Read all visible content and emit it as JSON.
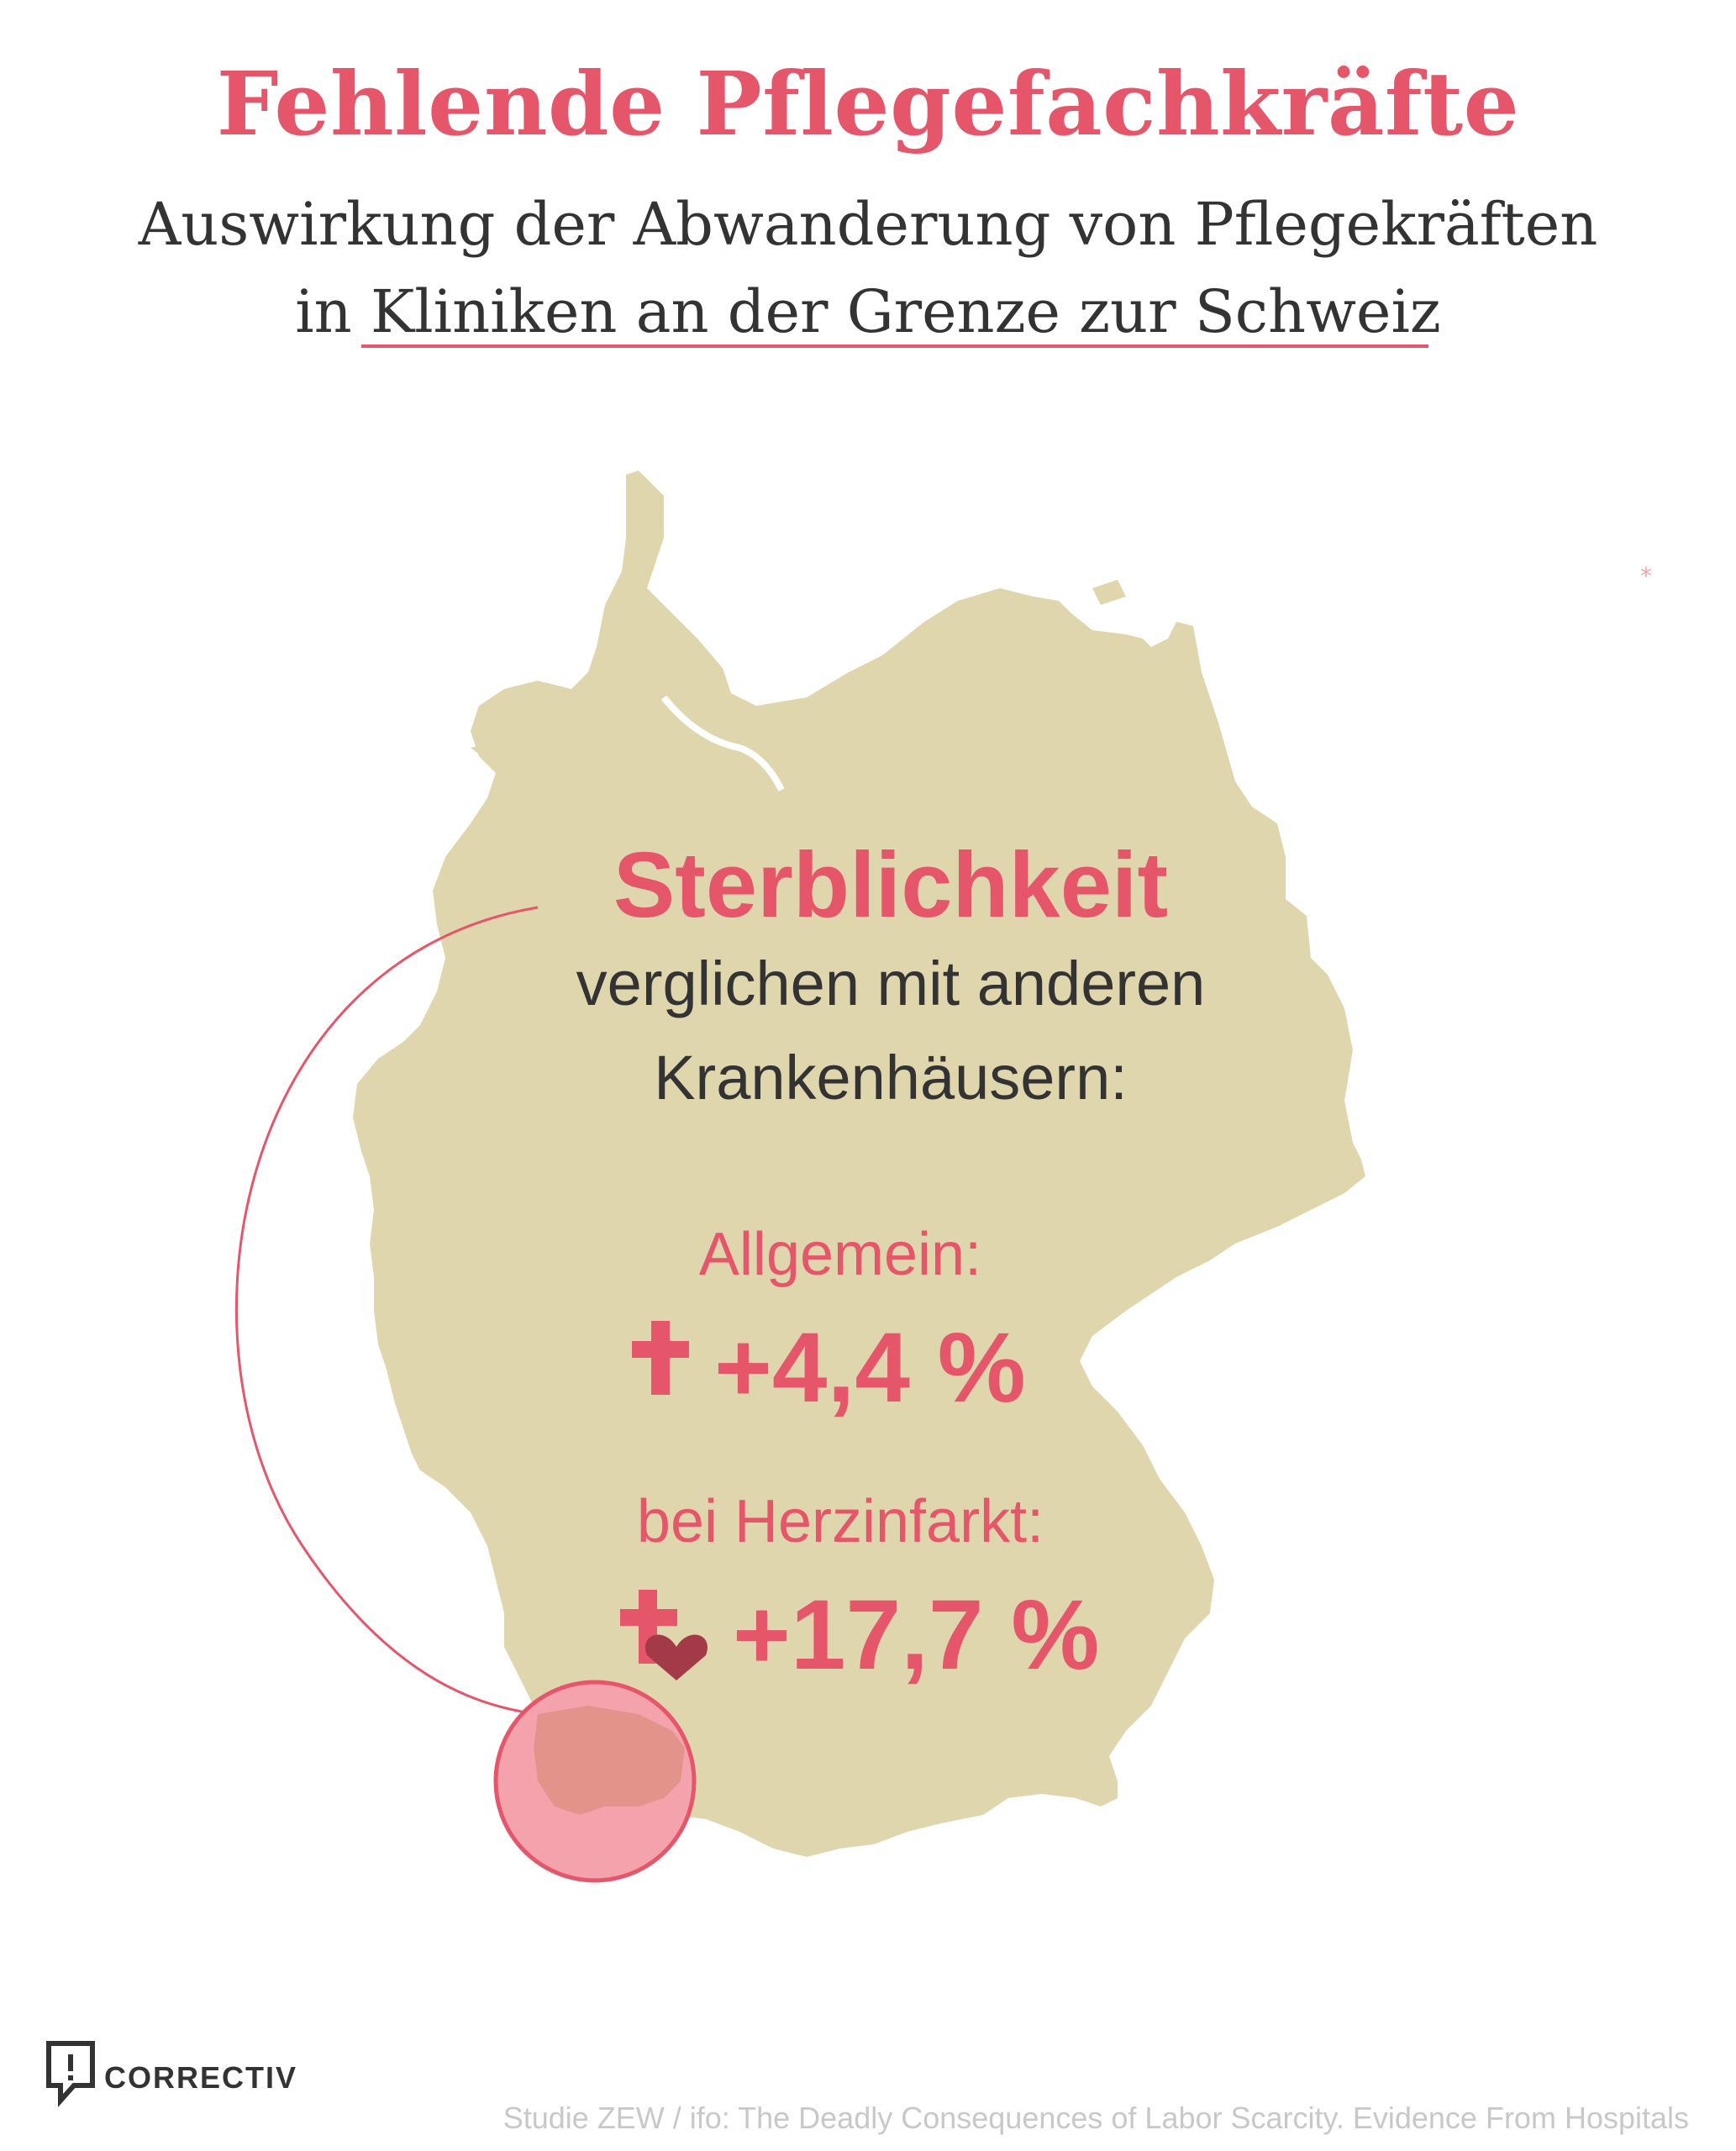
{
  "title": "Fehlende Pflegefachkräfte",
  "subtitle_line1": "Auswirkung der Abwanderung von Pflegekräften",
  "subtitle_line2": "in Kliniken an der Grenze zur Schweiz",
  "headline": "Sterblichkeit",
  "description_line1": "verglichen mit anderen",
  "description_line2": "Krankenhäusern:",
  "stats": [
    {
      "label": "Allgemein:",
      "value": "+4,4 %",
      "icon": "cross-icon"
    },
    {
      "label": "bei Herzinfarkt:",
      "value": "+17,7 %",
      "icon": "cross-heart-icon"
    }
  ],
  "brand": "CORRECTIV",
  "source": "Studie ZEW / ifo: The Deadly Consequences of Labor Scarcity. Evidence From Hospitals",
  "colors": {
    "accent": "#e6566a",
    "map": "#e0d6ad",
    "text": "#333333",
    "heart": "#a33a48",
    "highlight": "#f4a3ad"
  }
}
